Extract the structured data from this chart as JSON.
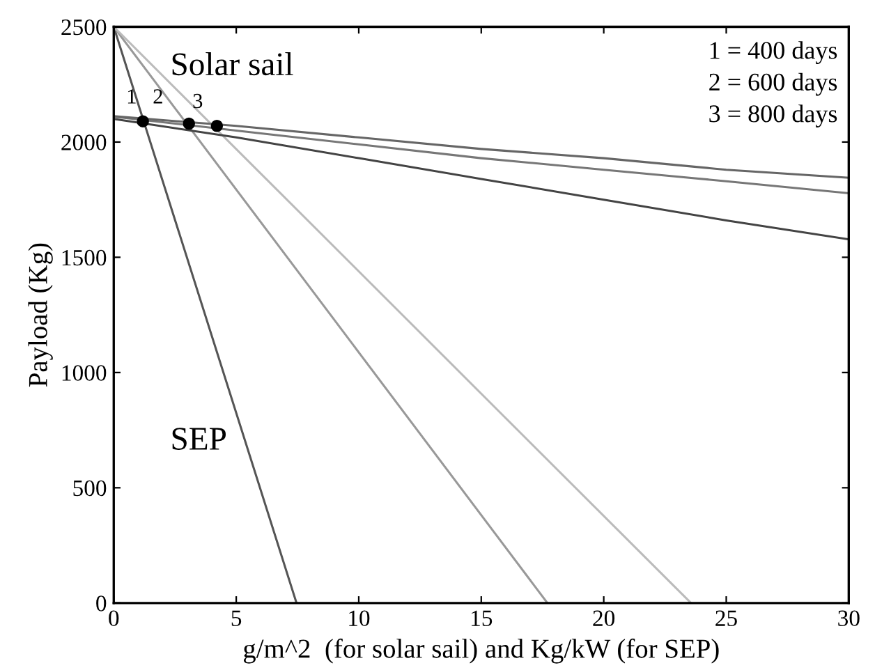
{
  "chart_data": {
    "type": "line",
    "xlabel": "g/m^2  (for solar sail) and Kg/kW (for SEP)",
    "ylabel": "Payload (Kg)",
    "xlim": [
      0,
      30
    ],
    "ylim": [
      0,
      2500
    ],
    "xticks": [
      0,
      5,
      10,
      15,
      20,
      25,
      30
    ],
    "yticks": [
      0,
      500,
      1000,
      1500,
      2000,
      2500
    ],
    "grid": false,
    "legend": false,
    "marker": "none",
    "line_style": "solid",
    "series": [
      {
        "color": "#555555",
        "x": [
          0,
          7.46
        ],
        "values": [
          2500,
          0
        ]
      },
      {
        "color": "#999999",
        "x": [
          0,
          17.7
        ],
        "values": [
          2500,
          0
        ]
      },
      {
        "color": "#bbbbbb",
        "x": [
          0,
          23.56
        ],
        "values": [
          2500,
          0
        ]
      },
      {
        "color": "#444444",
        "x": [
          0,
          5,
          10,
          15,
          20,
          25,
          30
        ],
        "values": [
          2100,
          2020,
          1930,
          1840,
          1750,
          1660,
          1578
        ]
      },
      {
        "color": "#777777",
        "x": [
          0,
          5,
          10,
          15,
          20,
          25,
          30
        ],
        "values": [
          2110,
          2050,
          1990,
          1930,
          1880,
          1830,
          1778
        ]
      },
      {
        "color": "#666666",
        "x": [
          0,
          5,
          10,
          15,
          20,
          25,
          30
        ],
        "values": [
          2112,
          2070,
          2020,
          1970,
          1930,
          1880,
          1845
        ]
      },
      {
        "type": "scatter",
        "color": "#000000",
        "x": [
          1.19,
          3.07,
          4.21
        ],
        "values": [
          2090,
          2080,
          2070
        ],
        "marker": "circle"
      }
    ],
    "annotations": [
      "Solar sail",
      "SEP",
      "1",
      "2",
      "3",
      "1 = 400 days",
      "2 = 600 days",
      "3 = 800 days"
    ]
  }
}
